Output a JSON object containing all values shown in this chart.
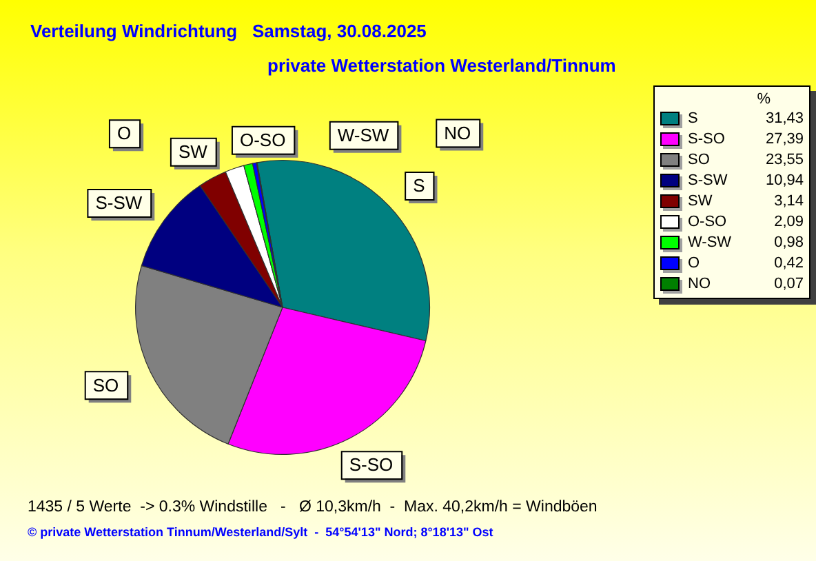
{
  "chart_data": {
    "type": "pie",
    "title": "Verteilung Windrichtung   Samstag, 30.08.2025",
    "subtitle": "private Wetterstation Westerland/Tinnum",
    "categories": [
      "S",
      "S-SO",
      "SO",
      "S-SW",
      "SW",
      "O-SO",
      "W-SW",
      "O",
      "NO"
    ],
    "values": [
      31.43,
      27.39,
      23.55,
      10.94,
      3.14,
      2.09,
      0.98,
      0.42,
      0.07
    ],
    "colors": [
      "#008080",
      "#ff00ff",
      "#808080",
      "#000080",
      "#800000",
      "#ffffff",
      "#00ff00",
      "#0000ff",
      "#008000"
    ],
    "value_labels": [
      "31,43",
      "27,39",
      "23,55",
      "10,94",
      "3,14",
      "2,09",
      "0,98",
      "0,42",
      "0,07"
    ],
    "legend": "right",
    "legend_title": "%",
    "annotations": [
      "1435 / 5 Werte  -> 0.3% Windstille   -   Ø 10,3km/h  -  Max. 40,2km/h = Windböen",
      "© private Wetterstation Tinnum/Westerland/Sylt  -  54°54'13\" Nord; 8°18'13\" Ost"
    ]
  }
}
